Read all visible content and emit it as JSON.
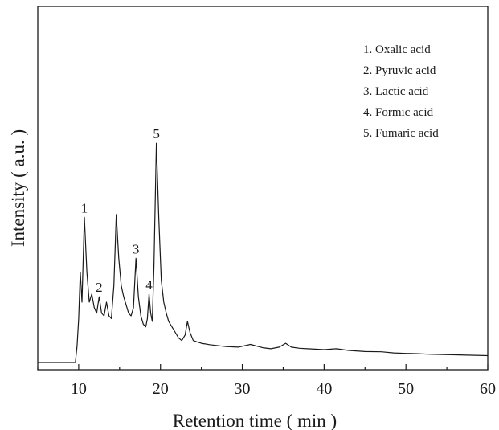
{
  "chart_data": {
    "type": "line",
    "title": "",
    "xlabel": "Retention time ( min )",
    "ylabel": "Intensity ( a.u. )",
    "xlim": [
      5,
      60
    ],
    "x_ticks": [
      10,
      20,
      30,
      40,
      50,
      60
    ],
    "x_tick_labels": [
      "10",
      "20",
      "30",
      "40",
      "50",
      "60"
    ],
    "ylim": [
      0,
      100
    ],
    "y_tick_labels_shown": false,
    "grid": false,
    "legend_position": "top-right",
    "legend": [
      "1. Oxalic acid",
      "2. Pyruvic acid",
      "3. Lactic acid",
      "4. Formic acid",
      "5. Fumaric acid"
    ],
    "peak_labels": [
      {
        "label": "1",
        "x": 10.7,
        "y": 53
      },
      {
        "label": "2",
        "x": 12.5,
        "y": 24
      },
      {
        "label": "3",
        "x": 17.0,
        "y": 38
      },
      {
        "label": "4",
        "x": 18.6,
        "y": 25
      },
      {
        "label": "5",
        "x": 19.5,
        "y": 80
      }
    ],
    "series": [
      {
        "x": [
          5.0,
          9.6,
          9.8,
          10.0,
          10.2,
          10.4,
          10.7,
          11.0,
          11.3,
          11.6,
          11.9,
          12.2,
          12.5,
          12.8,
          13.1,
          13.4,
          13.7,
          14.0,
          14.3,
          14.6,
          14.9,
          15.2,
          15.5,
          15.8,
          16.1,
          16.4,
          16.7,
          17.0,
          17.3,
          17.6,
          17.9,
          18.2,
          18.4,
          18.6,
          18.8,
          19.0,
          19.2,
          19.5,
          19.8,
          20.1,
          20.4,
          20.7,
          21.0,
          21.4,
          21.8,
          22.2,
          22.6,
          23.0,
          23.3,
          23.6,
          24.0,
          24.5,
          25.0,
          26.0,
          28.0,
          29.5,
          31.0,
          32.5,
          33.5,
          34.5,
          35.3,
          36.0,
          37.0,
          38.0,
          40.0,
          41.5,
          43.0,
          45.0,
          47.0,
          48.5,
          50.0,
          51.5,
          53.0,
          56.0,
          60.0
        ],
        "y": [
          0,
          0,
          6,
          16,
          33,
          22,
          53,
          33,
          22,
          25,
          20,
          18,
          24,
          18,
          17,
          22,
          17,
          16,
          28,
          54,
          38,
          28,
          24,
          21,
          18,
          17,
          20,
          38,
          24,
          17,
          14,
          13,
          16,
          25,
          18,
          15,
          35,
          80,
          52,
          30,
          22,
          18,
          15,
          13,
          11,
          9,
          8,
          10,
          15,
          11,
          8,
          7.5,
          7,
          6.5,
          5.8,
          5.6,
          6.6,
          5.4,
          5.0,
          5.6,
          7.0,
          5.6,
          5.2,
          5.0,
          4.7,
          5.0,
          4.4,
          4.0,
          3.9,
          3.5,
          3.3,
          3.2,
          3.0,
          2.8,
          2.5
        ]
      }
    ]
  }
}
